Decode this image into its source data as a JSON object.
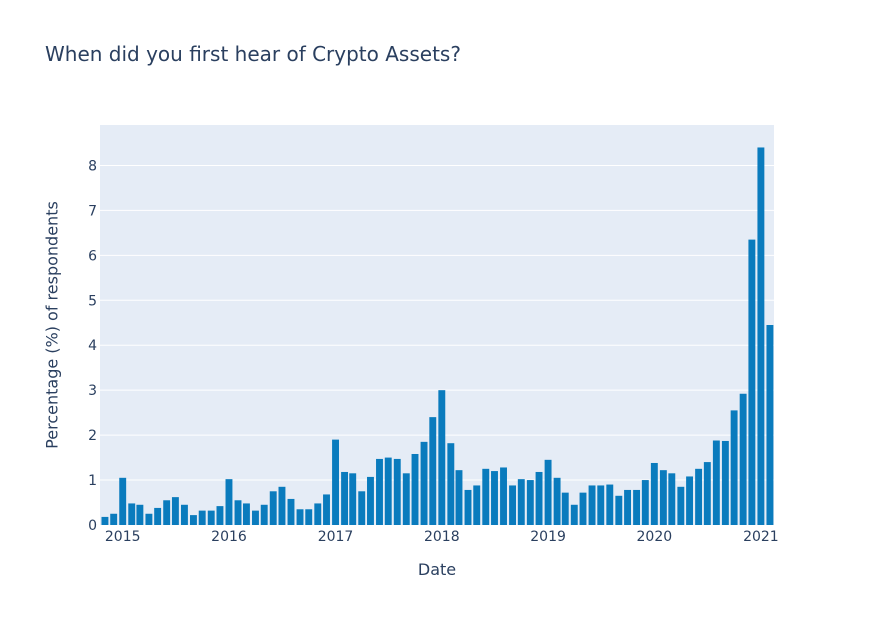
{
  "chart_data": {
    "type": "bar",
    "title": "When did you first hear of Crypto Assets?",
    "xlabel": "Date",
    "ylabel": "Percentage (%) of respondents",
    "ylim": [
      0,
      8.9
    ],
    "xlim": [
      "2014-10-15",
      "2021-02-15"
    ],
    "y_ticks": [
      0,
      1,
      2,
      3,
      4,
      5,
      6,
      7,
      8
    ],
    "x_ticks": [
      "2015",
      "2016",
      "2017",
      "2018",
      "2019",
      "2020",
      "2021"
    ],
    "grid": true,
    "legend": "none",
    "bar_color": "#0a7bbd",
    "plot_background": "#e5ecf6",
    "categories": [
      "2014-11",
      "2014-12",
      "2015-01",
      "2015-02",
      "2015-03",
      "2015-04",
      "2015-05",
      "2015-06",
      "2015-07",
      "2015-08",
      "2015-09",
      "2015-10",
      "2015-11",
      "2015-12",
      "2016-01",
      "2016-02",
      "2016-03",
      "2016-04",
      "2016-05",
      "2016-06",
      "2016-07",
      "2016-08",
      "2016-09",
      "2016-10",
      "2016-11",
      "2016-12",
      "2017-01",
      "2017-02",
      "2017-03",
      "2017-04",
      "2017-05",
      "2017-06",
      "2017-07",
      "2017-08",
      "2017-09",
      "2017-10",
      "2017-11",
      "2017-12",
      "2018-01",
      "2018-02",
      "2018-03",
      "2018-04",
      "2018-05",
      "2018-06",
      "2018-07",
      "2018-08",
      "2018-09",
      "2018-10",
      "2018-11",
      "2018-12",
      "2019-01",
      "2019-02",
      "2019-03",
      "2019-04",
      "2019-05",
      "2019-06",
      "2019-07",
      "2019-08",
      "2019-09",
      "2019-10",
      "2019-11",
      "2019-12",
      "2020-01",
      "2020-02",
      "2020-03",
      "2020-04",
      "2020-05",
      "2020-06",
      "2020-07",
      "2020-08",
      "2020-09",
      "2020-10",
      "2020-11",
      "2020-12",
      "2021-01",
      "2021-02"
    ],
    "values": [
      0.18,
      0.25,
      1.05,
      0.48,
      0.45,
      0.25,
      0.38,
      0.55,
      0.62,
      0.45,
      0.22,
      0.32,
      0.32,
      0.42,
      1.02,
      0.55,
      0.48,
      0.32,
      0.45,
      0.75,
      0.85,
      0.58,
      0.35,
      0.35,
      0.48,
      0.68,
      1.9,
      1.18,
      1.15,
      0.75,
      1.07,
      1.47,
      1.5,
      1.47,
      1.15,
      1.58,
      1.85,
      2.4,
      3.0,
      1.82,
      1.22,
      0.78,
      0.88,
      1.25,
      1.2,
      1.28,
      0.88,
      1.02,
      1.0,
      1.18,
      1.45,
      1.05,
      0.72,
      0.45,
      0.72,
      0.88,
      0.88,
      0.9,
      0.65,
      0.78,
      0.78,
      1.0,
      1.38,
      1.22,
      1.15,
      0.85,
      1.08,
      1.25,
      1.4,
      1.88,
      1.87,
      2.55,
      2.92,
      6.35,
      8.4,
      4.45
    ]
  }
}
